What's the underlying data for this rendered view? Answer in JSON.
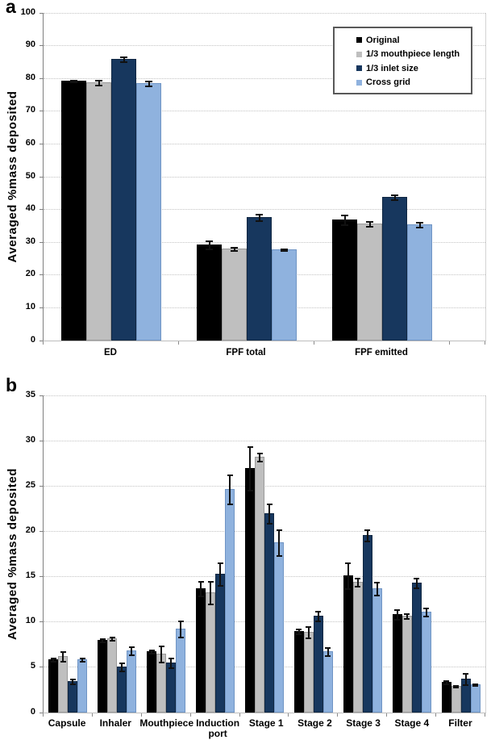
{
  "figure": {
    "panel_a_label": "a",
    "panel_b_label": "b",
    "y_axis_title_a": "Averaged %mass deposited",
    "y_axis_title_b": "Averaged %mass deposited"
  },
  "colors": {
    "original": "#000000",
    "mouthpiece_length": "#BFBFBF",
    "inlet_size": "#17375E",
    "cross_grid": "#8FB2DE",
    "error_bar": "#111111"
  },
  "chart_data": [
    {
      "type": "bar",
      "panel": "a",
      "title": "",
      "xlabel": "",
      "ylabel": "Averaged %mass deposited",
      "ylim": [
        0,
        100
      ],
      "yticks": [
        0,
        10,
        20,
        30,
        40,
        50,
        60,
        70,
        80,
        90,
        100
      ],
      "grid": true,
      "legend_position": "top-right-inside",
      "categories": [
        "ED",
        "FPF total",
        "FPF emitted"
      ],
      "series": [
        {
          "name": "Original",
          "color": "#000000",
          "values": [
            79.3,
            29.2,
            37.0
          ],
          "errors": [
            0.5,
            1.4,
            1.8
          ]
        },
        {
          "name": "1/3 mouthpiece length",
          "color": "#BFBFBF",
          "values": [
            78.9,
            28.2,
            35.8
          ],
          "errors": [
            1.0,
            0.7,
            1.0
          ]
        },
        {
          "name": "1/3 inlet size",
          "color": "#17375E",
          "values": [
            86.0,
            37.6,
            43.8
          ],
          "errors": [
            1.0,
            1.3,
            1.1
          ]
        },
        {
          "name": "Cross grid",
          "color": "#8FB2DE",
          "values": [
            78.5,
            27.8,
            35.5
          ],
          "errors": [
            1.0,
            0.4,
            1.0
          ]
        }
      ]
    },
    {
      "type": "bar",
      "panel": "b",
      "title": "",
      "xlabel": "",
      "ylabel": "Averaged %mass deposited",
      "ylim": [
        0,
        35
      ],
      "yticks": [
        0,
        5,
        10,
        15,
        20,
        25,
        30,
        35
      ],
      "grid": true,
      "legend_position": "none",
      "categories": [
        "Capsule",
        "Inhaler",
        "Mouthpiece",
        "Induction port",
        "Stage 1",
        "Stage 2",
        "Stage 3",
        "Stage 4",
        "Filter"
      ],
      "series": [
        {
          "name": "Original",
          "color": "#000000",
          "values": [
            5.9,
            8.0,
            6.8,
            13.7,
            27.0,
            9.0,
            15.1,
            10.9,
            3.4
          ],
          "errors": [
            0.3,
            0.3,
            0.3,
            0.9,
            2.5,
            0.4,
            1.5,
            0.6,
            0.3
          ]
        },
        {
          "name": "1/3 mouthpiece length",
          "color": "#BFBFBF",
          "values": [
            6.2,
            8.2,
            6.5,
            13.3,
            28.2,
            8.9,
            14.4,
            10.7,
            2.9
          ],
          "errors": [
            0.6,
            0.3,
            1.0,
            1.3,
            0.5,
            0.7,
            0.5,
            0.4,
            0.2
          ]
        },
        {
          "name": "1/3 inlet size",
          "color": "#17375E",
          "values": [
            3.5,
            5.1,
            5.5,
            15.3,
            22.0,
            10.7,
            19.6,
            14.3,
            3.7
          ],
          "errors": [
            0.4,
            0.5,
            0.6,
            1.3,
            1.2,
            0.6,
            0.7,
            0.6,
            0.7
          ]
        },
        {
          "name": "Cross grid",
          "color": "#8FB2DE",
          "values": [
            5.9,
            6.9,
            9.3,
            24.7,
            18.8,
            6.8,
            13.7,
            11.1,
            3.1
          ],
          "errors": [
            0.3,
            0.5,
            1.0,
            1.7,
            1.5,
            0.5,
            0.8,
            0.5,
            0.2
          ]
        }
      ]
    }
  ]
}
